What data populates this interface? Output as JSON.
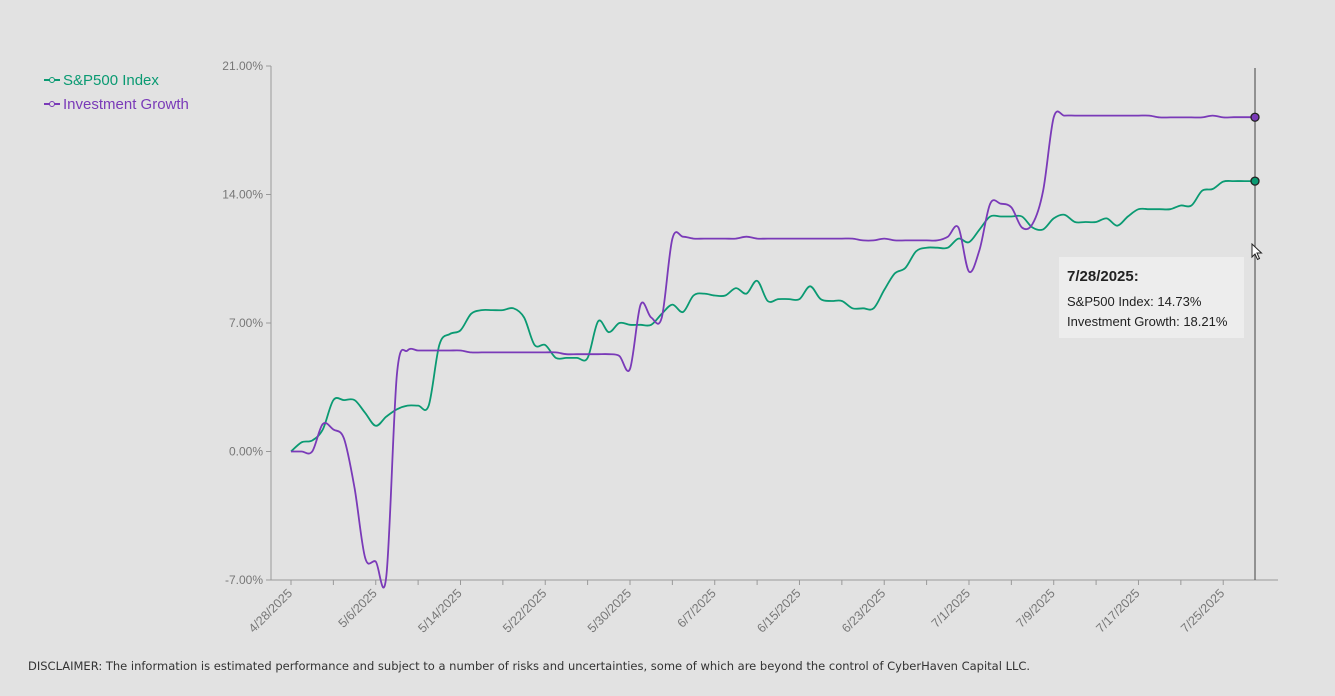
{
  "chart_data": {
    "type": "line",
    "x_labels": [
      "4/28/2025",
      "5/6/2025",
      "5/14/2025",
      "5/22/2025",
      "5/30/2025",
      "6/7/2025",
      "6/15/2025",
      "6/23/2025",
      "7/1/2025",
      "7/9/2025",
      "7/17/2025",
      "7/25/2025"
    ],
    "y_ticks": [
      "21.00%",
      "14.00%",
      "7.00%",
      "0.00%",
      "-7.00%"
    ],
    "ylim": [
      -7,
      21
    ],
    "x_range": [
      "2025-04-28",
      "2025-07-28"
    ],
    "grid": false,
    "legend_position": "top-left",
    "series": [
      {
        "name": "S&P500 Index",
        "color": "#0a9a72",
        "points": [
          [
            "2025-04-28",
            0.0
          ],
          [
            "2025-04-29",
            0.5
          ],
          [
            "2025-04-30",
            0.6
          ],
          [
            "2025-05-01",
            1.2
          ],
          [
            "2025-05-02",
            2.8
          ],
          [
            "2025-05-03",
            2.8
          ],
          [
            "2025-05-04",
            2.8
          ],
          [
            "2025-05-05",
            2.1
          ],
          [
            "2025-05-06",
            1.4
          ],
          [
            "2025-05-07",
            1.9
          ],
          [
            "2025-05-08",
            2.3
          ],
          [
            "2025-05-09",
            2.5
          ],
          [
            "2025-05-10",
            2.5
          ],
          [
            "2025-05-11",
            2.5
          ],
          [
            "2025-05-12",
            5.8
          ],
          [
            "2025-05-13",
            6.4
          ],
          [
            "2025-05-14",
            6.6
          ],
          [
            "2025-05-15",
            7.5
          ],
          [
            "2025-05-16",
            7.7
          ],
          [
            "2025-05-17",
            7.7
          ],
          [
            "2025-05-18",
            7.7
          ],
          [
            "2025-05-19",
            7.8
          ],
          [
            "2025-05-20",
            7.3
          ],
          [
            "2025-05-21",
            5.8
          ],
          [
            "2025-05-22",
            5.8
          ],
          [
            "2025-05-23",
            5.1
          ],
          [
            "2025-05-24",
            5.1
          ],
          [
            "2025-05-25",
            5.1
          ],
          [
            "2025-05-26",
            5.1
          ],
          [
            "2025-05-27",
            7.1
          ],
          [
            "2025-05-28",
            6.5
          ],
          [
            "2025-05-29",
            7.0
          ],
          [
            "2025-05-30",
            6.9
          ],
          [
            "2025-05-31",
            6.9
          ],
          [
            "2025-06-01",
            6.9
          ],
          [
            "2025-06-02",
            7.5
          ],
          [
            "2025-06-03",
            8.0
          ],
          [
            "2025-06-04",
            7.6
          ],
          [
            "2025-06-05",
            8.5
          ],
          [
            "2025-06-06",
            8.6
          ],
          [
            "2025-06-07",
            8.5
          ],
          [
            "2025-06-08",
            8.5
          ],
          [
            "2025-06-09",
            8.9
          ],
          [
            "2025-06-10",
            8.6
          ],
          [
            "2025-06-11",
            9.3
          ],
          [
            "2025-06-12",
            8.2
          ],
          [
            "2025-06-13",
            8.3
          ],
          [
            "2025-06-14",
            8.3
          ],
          [
            "2025-06-15",
            8.3
          ],
          [
            "2025-06-16",
            9.0
          ],
          [
            "2025-06-17",
            8.3
          ],
          [
            "2025-06-18",
            8.2
          ],
          [
            "2025-06-19",
            8.2
          ],
          [
            "2025-06-20",
            7.8
          ],
          [
            "2025-06-21",
            7.8
          ],
          [
            "2025-06-22",
            7.8
          ],
          [
            "2025-06-23",
            8.8
          ],
          [
            "2025-06-24",
            9.7
          ],
          [
            "2025-06-25",
            10.0
          ],
          [
            "2025-06-26",
            10.9
          ],
          [
            "2025-06-27",
            11.1
          ],
          [
            "2025-06-28",
            11.1
          ],
          [
            "2025-06-29",
            11.1
          ],
          [
            "2025-06-30",
            11.6
          ],
          [
            "2025-07-01",
            11.4
          ],
          [
            "2025-07-02",
            12.1
          ],
          [
            "2025-07-03",
            12.8
          ],
          [
            "2025-07-04",
            12.8
          ],
          [
            "2025-07-05",
            12.8
          ],
          [
            "2025-07-06",
            12.8
          ],
          [
            "2025-07-07",
            12.2
          ],
          [
            "2025-07-08",
            12.1
          ],
          [
            "2025-07-09",
            12.7
          ],
          [
            "2025-07-10",
            12.9
          ],
          [
            "2025-07-11",
            12.5
          ],
          [
            "2025-07-12",
            12.5
          ],
          [
            "2025-07-13",
            12.5
          ],
          [
            "2025-07-14",
            12.7
          ],
          [
            "2025-07-15",
            12.3
          ],
          [
            "2025-07-16",
            12.8
          ],
          [
            "2025-07-17",
            13.2
          ],
          [
            "2025-07-18",
            13.2
          ],
          [
            "2025-07-19",
            13.2
          ],
          [
            "2025-07-20",
            13.2
          ],
          [
            "2025-07-21",
            13.4
          ],
          [
            "2025-07-22",
            13.4
          ],
          [
            "2025-07-23",
            14.2
          ],
          [
            "2025-07-24",
            14.3
          ],
          [
            "2025-07-25",
            14.7
          ],
          [
            "2025-07-26",
            14.73
          ],
          [
            "2025-07-27",
            14.73
          ],
          [
            "2025-07-28",
            14.73
          ]
        ]
      },
      {
        "name": "Investment Growth",
        "color": "#7a3ab8",
        "points": [
          [
            "2025-04-28",
            0.0
          ],
          [
            "2025-04-29",
            0.0
          ],
          [
            "2025-04-30",
            0.0
          ],
          [
            "2025-05-01",
            1.5
          ],
          [
            "2025-05-02",
            1.2
          ],
          [
            "2025-05-03",
            0.7
          ],
          [
            "2025-05-04",
            -2.0
          ],
          [
            "2025-05-05",
            -5.8
          ],
          [
            "2025-05-06",
            -6.0
          ],
          [
            "2025-05-07",
            -6.8
          ],
          [
            "2025-05-08",
            4.2
          ],
          [
            "2025-05-09",
            5.5
          ],
          [
            "2025-05-10",
            5.5
          ],
          [
            "2025-05-11",
            5.5
          ],
          [
            "2025-05-12",
            5.5
          ],
          [
            "2025-05-13",
            5.5
          ],
          [
            "2025-05-14",
            5.5
          ],
          [
            "2025-05-15",
            5.4
          ],
          [
            "2025-05-16",
            5.4
          ],
          [
            "2025-05-17",
            5.4
          ],
          [
            "2025-05-18",
            5.4
          ],
          [
            "2025-05-19",
            5.4
          ],
          [
            "2025-05-20",
            5.4
          ],
          [
            "2025-05-21",
            5.4
          ],
          [
            "2025-05-22",
            5.4
          ],
          [
            "2025-05-23",
            5.4
          ],
          [
            "2025-05-24",
            5.3
          ],
          [
            "2025-05-25",
            5.3
          ],
          [
            "2025-05-26",
            5.3
          ],
          [
            "2025-05-27",
            5.3
          ],
          [
            "2025-05-28",
            5.3
          ],
          [
            "2025-05-29",
            5.2
          ],
          [
            "2025-05-30",
            4.5
          ],
          [
            "2025-05-31",
            8.0
          ],
          [
            "2025-06-01",
            7.3
          ],
          [
            "2025-06-02",
            7.3
          ],
          [
            "2025-06-03",
            11.6
          ],
          [
            "2025-06-04",
            11.7
          ],
          [
            "2025-06-05",
            11.6
          ],
          [
            "2025-06-06",
            11.6
          ],
          [
            "2025-06-07",
            11.6
          ],
          [
            "2025-06-08",
            11.6
          ],
          [
            "2025-06-09",
            11.6
          ],
          [
            "2025-06-10",
            11.7
          ],
          [
            "2025-06-11",
            11.6
          ],
          [
            "2025-06-12",
            11.6
          ],
          [
            "2025-06-13",
            11.6
          ],
          [
            "2025-06-14",
            11.6
          ],
          [
            "2025-06-15",
            11.6
          ],
          [
            "2025-06-16",
            11.6
          ],
          [
            "2025-06-17",
            11.6
          ],
          [
            "2025-06-18",
            11.6
          ],
          [
            "2025-06-19",
            11.6
          ],
          [
            "2025-06-20",
            11.6
          ],
          [
            "2025-06-21",
            11.5
          ],
          [
            "2025-06-22",
            11.5
          ],
          [
            "2025-06-23",
            11.6
          ],
          [
            "2025-06-24",
            11.5
          ],
          [
            "2025-06-25",
            11.5
          ],
          [
            "2025-06-26",
            11.5
          ],
          [
            "2025-06-27",
            11.5
          ],
          [
            "2025-06-28",
            11.5
          ],
          [
            "2025-06-29",
            11.7
          ],
          [
            "2025-06-30",
            12.2
          ],
          [
            "2025-07-01",
            9.8
          ],
          [
            "2025-07-02",
            11.0
          ],
          [
            "2025-07-03",
            13.5
          ],
          [
            "2025-07-04",
            13.5
          ],
          [
            "2025-07-05",
            13.3
          ],
          [
            "2025-07-06",
            12.2
          ],
          [
            "2025-07-07",
            12.4
          ],
          [
            "2025-07-08",
            14.2
          ],
          [
            "2025-07-09",
            18.2
          ],
          [
            "2025-07-10",
            18.3
          ],
          [
            "2025-07-11",
            18.3
          ],
          [
            "2025-07-12",
            18.3
          ],
          [
            "2025-07-13",
            18.3
          ],
          [
            "2025-07-14",
            18.3
          ],
          [
            "2025-07-15",
            18.3
          ],
          [
            "2025-07-16",
            18.3
          ],
          [
            "2025-07-17",
            18.3
          ],
          [
            "2025-07-18",
            18.3
          ],
          [
            "2025-07-19",
            18.2
          ],
          [
            "2025-07-20",
            18.2
          ],
          [
            "2025-07-21",
            18.2
          ],
          [
            "2025-07-22",
            18.2
          ],
          [
            "2025-07-23",
            18.2
          ],
          [
            "2025-07-24",
            18.3
          ],
          [
            "2025-07-25",
            18.2
          ],
          [
            "2025-07-26",
            18.21
          ],
          [
            "2025-07-27",
            18.21
          ],
          [
            "2025-07-28",
            18.21
          ]
        ]
      }
    ],
    "hover": {
      "date_label": "7/28/2025:",
      "date": "2025-07-28",
      "rows": [
        "S&P500 Index: 14.73%",
        "Investment Growth: 18.21%"
      ]
    }
  },
  "disclaimer": "DISCLAIMER: The information is estimated performance and subject to a number of risks and uncertainties, some of which are beyond the control of CyberHaven Capital LLC."
}
